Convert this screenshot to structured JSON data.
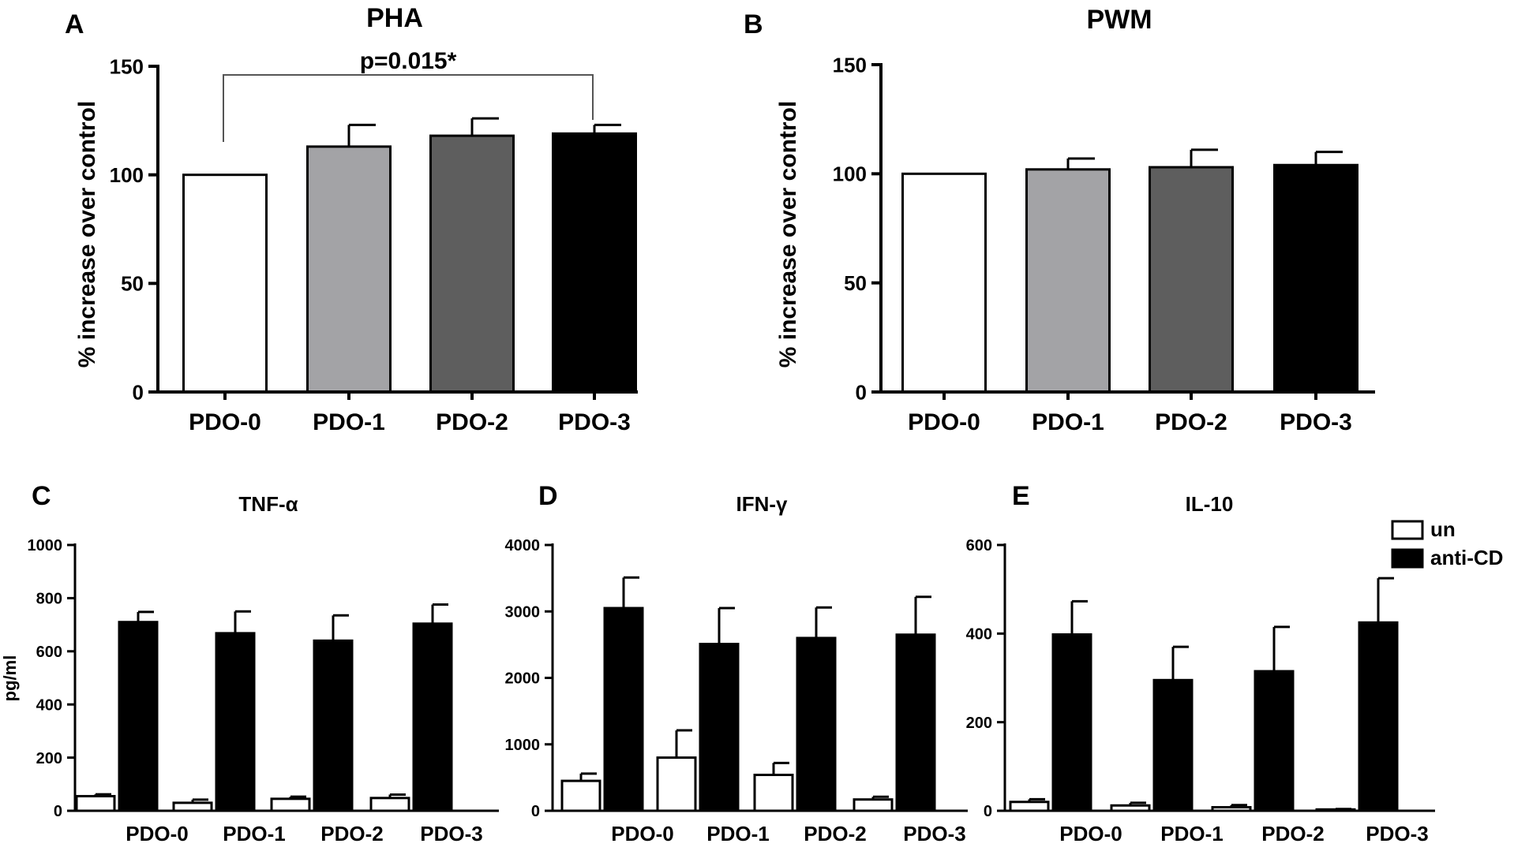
{
  "chart_data": [
    {
      "type": "bar",
      "panel_label": "A",
      "title": "PHA",
      "ylabel": "% increase over control",
      "xlabel": "",
      "categories": [
        "PDO-0",
        "PDO-1",
        "PDO-2",
        "PDO-3"
      ],
      "ylim": [
        0,
        150
      ],
      "yticks": [
        "0",
        "50",
        "100",
        "150"
      ],
      "grid": false,
      "series": [
        {
          "values": [
            100,
            113,
            118,
            119
          ],
          "errors": [
            0,
            10,
            8,
            4
          ],
          "fills": [
            "#ffffff",
            "#a3a3a6",
            "#5e5e5e",
            "#000000"
          ]
        }
      ],
      "annotation": {
        "text": "p=0.015*",
        "from": "PDO-0",
        "to": "PDO-3"
      }
    },
    {
      "type": "bar",
      "panel_label": "B",
      "title": "PWM",
      "ylabel": "% increase over control",
      "xlabel": "",
      "categories": [
        "PDO-0",
        "PDO-1",
        "PDO-2",
        "PDO-3"
      ],
      "ylim": [
        0,
        150
      ],
      "yticks": [
        "0",
        "50",
        "100",
        "150"
      ],
      "grid": false,
      "series": [
        {
          "values": [
            100,
            102,
            103,
            104
          ],
          "errors": [
            0,
            5,
            8,
            6
          ],
          "fills": [
            "#ffffff",
            "#a3a3a6",
            "#5e5e5e",
            "#000000"
          ]
        }
      ]
    },
    {
      "type": "bar",
      "panel_label": "C",
      "title": "TNF-α",
      "ylabel": "pg/ml",
      "xlabel": "",
      "categories": [
        "PDO-0",
        "PDO-1",
        "PDO-2",
        "PDO-3"
      ],
      "ylim": [
        0,
        1000
      ],
      "yticks": [
        "0",
        "200",
        "400",
        "600",
        "800",
        "1000"
      ],
      "grid": false,
      "series": [
        {
          "name": "un",
          "values": [
            55,
            30,
            45,
            48
          ],
          "errors": [
            7,
            12,
            8,
            13
          ]
        },
        {
          "name": "anti-CD",
          "values": [
            710,
            668,
            640,
            704
          ],
          "errors": [
            38,
            82,
            95,
            72
          ]
        }
      ]
    },
    {
      "type": "bar",
      "panel_label": "D",
      "title": "IFN-γ",
      "ylabel": "",
      "xlabel": "",
      "categories": [
        "PDO-0",
        "PDO-1",
        "PDO-2",
        "PDO-3"
      ],
      "ylim": [
        0,
        4000
      ],
      "yticks": [
        "0",
        "1000",
        "2000",
        "3000",
        "4000"
      ],
      "grid": false,
      "series": [
        {
          "name": "un",
          "values": [
            450,
            800,
            540,
            170
          ],
          "errors": [
            110,
            410,
            180,
            40
          ]
        },
        {
          "name": "anti-CD",
          "values": [
            3050,
            2510,
            2600,
            2650
          ],
          "errors": [
            460,
            540,
            460,
            570
          ]
        }
      ]
    },
    {
      "type": "bar",
      "panel_label": "E",
      "title": "IL-10",
      "ylabel": "",
      "xlabel": "",
      "categories": [
        "PDO-0",
        "PDO-1",
        "PDO-2",
        "PDO-3"
      ],
      "ylim": [
        0,
        600
      ],
      "yticks": [
        "0",
        "200",
        "400",
        "600"
      ],
      "grid": false,
      "series": [
        {
          "name": "un",
          "values": [
            20,
            12,
            8,
            3
          ],
          "errors": [
            6,
            6,
            5,
            1
          ]
        },
        {
          "name": "anti-CD",
          "values": [
            398,
            295,
            315,
            425
          ],
          "errors": [
            75,
            75,
            100,
            100
          ]
        }
      ],
      "legend": {
        "position": "top-right",
        "entries": [
          "un",
          "anti-CD"
        ]
      }
    }
  ]
}
